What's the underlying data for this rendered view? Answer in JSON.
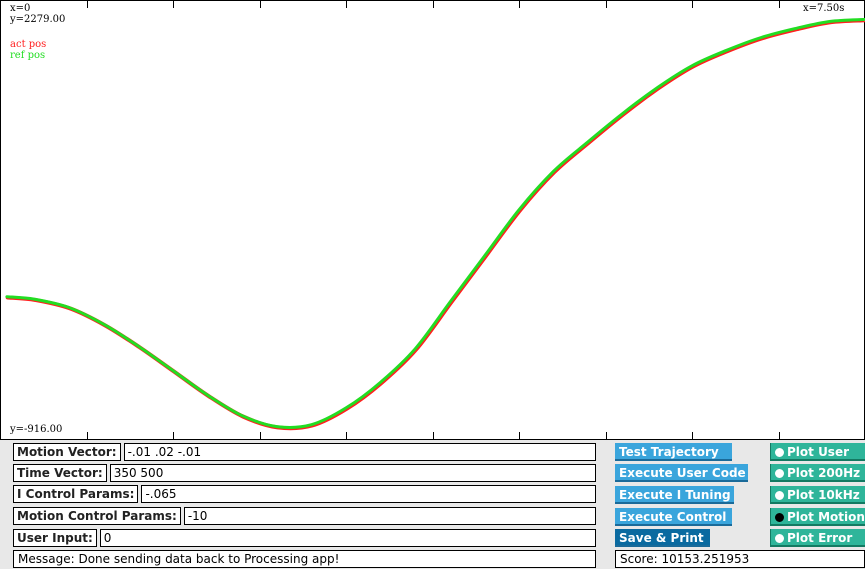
{
  "plot": {
    "x_min_label": "x=0",
    "y_max_label": "y=2279.00",
    "y_min_label": "y=-916.00",
    "x_max_label": "x=7.50s",
    "legend": [
      {
        "label": "act pos",
        "color": "#ff2020"
      },
      {
        "label": "ref pos",
        "color": "#22dd22"
      }
    ]
  },
  "chart_data": {
    "type": "line",
    "xlim": [
      0,
      7.5
    ],
    "ylim": [
      -916,
      2279
    ],
    "x_unit": "s",
    "series": [
      {
        "name": "act pos",
        "color": "#ff2020",
        "x": [
          0.06,
          0.3,
          0.6,
          0.9,
          1.2,
          1.5,
          1.8,
          2.1,
          2.4,
          2.7,
          3.0,
          3.3,
          3.6,
          3.9,
          4.2,
          4.5,
          4.8,
          5.1,
          5.4,
          5.7,
          6.0,
          6.3,
          6.6,
          6.9,
          7.2,
          7.5
        ],
        "y": [
          105,
          85,
          20,
          -110,
          -280,
          -470,
          -660,
          -820,
          -905,
          -890,
          -760,
          -560,
          -300,
          60,
          420,
          780,
          1080,
          1310,
          1530,
          1730,
          1900,
          2020,
          2120,
          2190,
          2245,
          2260
        ]
      },
      {
        "name": "ref pos",
        "color": "#22dd22",
        "x": [
          0.06,
          0.3,
          0.6,
          0.9,
          1.2,
          1.5,
          1.8,
          2.1,
          2.4,
          2.7,
          3.0,
          3.3,
          3.6,
          3.9,
          4.2,
          4.5,
          4.8,
          5.1,
          5.4,
          5.7,
          6.0,
          6.3,
          6.6,
          6.9,
          7.2,
          7.5
        ],
        "y": [
          105,
          85,
          20,
          -110,
          -280,
          -470,
          -660,
          -820,
          -905,
          -890,
          -760,
          -560,
          -300,
          60,
          420,
          780,
          1080,
          1310,
          1530,
          1730,
          1900,
          2020,
          2120,
          2190,
          2245,
          2260
        ]
      }
    ]
  },
  "fields": {
    "motion_vector": {
      "label": "Motion Vector:",
      "value": "-.01 .02 -.01"
    },
    "time_vector": {
      "label": "Time Vector:",
      "value": "350 500"
    },
    "i_control": {
      "label": "I Control Params:",
      "value": "-.065"
    },
    "motion_control": {
      "label": "Motion Control Params:",
      "value": "-10"
    },
    "user_input": {
      "label": "User Input:",
      "value": "0"
    }
  },
  "message": "Message: Done sending data back to Processing app!",
  "score": "Score: 10153.251953",
  "buttons": {
    "test_trajectory": "Test Trajectory",
    "execute_user_code": "Execute User Code",
    "execute_i_tuning": "Execute I Tuning",
    "execute_control": "Execute Control",
    "save_print": "Save & Print"
  },
  "radios": [
    {
      "label": "Plot User",
      "selected": false
    },
    {
      "label": "Plot 200Hz",
      "selected": false
    },
    {
      "label": "Plot 10kHz",
      "selected": false
    },
    {
      "label": "Plot Motion",
      "selected": true
    },
    {
      "label": "Plot Error",
      "selected": false
    }
  ]
}
